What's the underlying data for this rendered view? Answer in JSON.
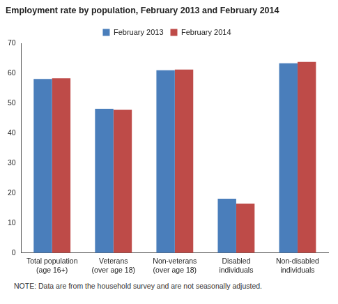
{
  "chart_data": {
    "type": "bar",
    "title": "Employment rate by population, February 2013 and February 2014",
    "note": "NOTE: Data are from the household survey and are not seasonally adjusted.",
    "categories": [
      [
        "Total population",
        "(age 16+)"
      ],
      [
        "Veterans",
        "(over age 18)"
      ],
      [
        "Non-veterans",
        "(over age 18)"
      ],
      [
        "Disabled",
        "individuals"
      ],
      [
        "Non-disabled",
        "individuals"
      ]
    ],
    "series": [
      {
        "name": "February 2013",
        "color": "#4a7ebb",
        "values": [
          58.1,
          48.1,
          61.0,
          18.1,
          63.3
        ]
      },
      {
        "name": "February 2014",
        "color": "#be4b48",
        "values": [
          58.3,
          47.8,
          61.2,
          16.5,
          63.8
        ]
      }
    ],
    "ylim": [
      0,
      70
    ],
    "yticks": [
      0,
      10,
      20,
      30,
      40,
      50,
      60,
      70
    ],
    "grid": false,
    "legend": "top"
  }
}
